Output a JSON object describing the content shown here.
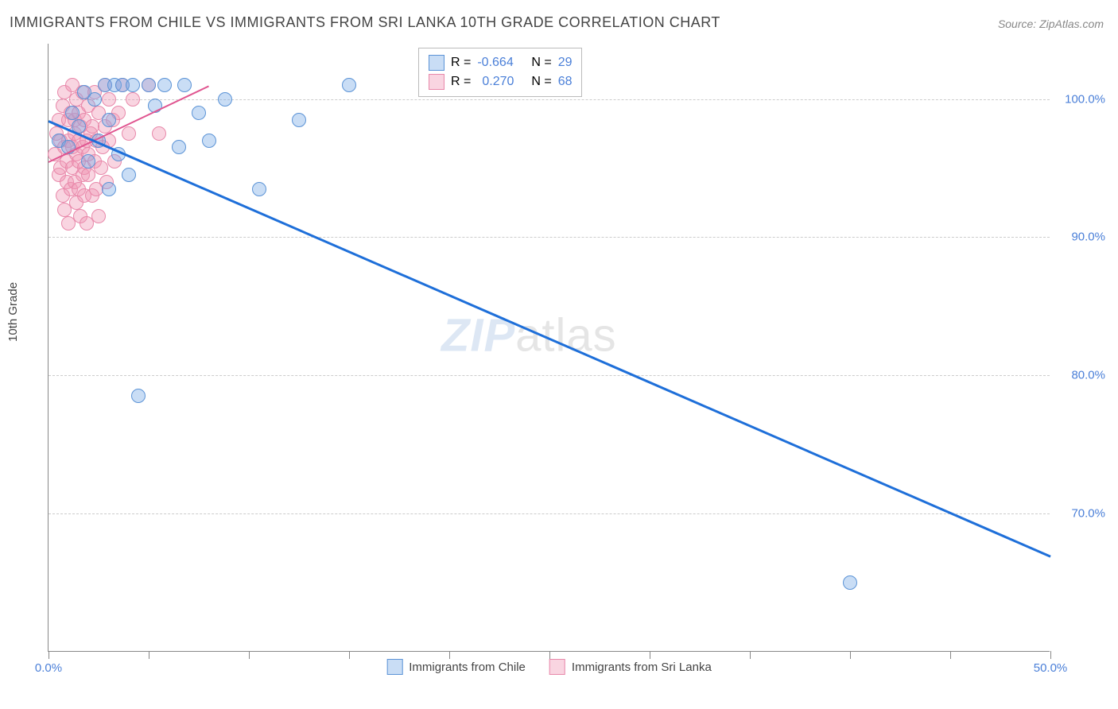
{
  "title": "IMMIGRANTS FROM CHILE VS IMMIGRANTS FROM SRI LANKA 10TH GRADE CORRELATION CHART",
  "source_label": "Source: ZipAtlas.com",
  "ylabel": "10th Grade",
  "watermark_bold": "ZIP",
  "watermark_thin": "atlas",
  "chart": {
    "type": "scatter",
    "xlim": [
      0,
      50
    ],
    "ylim": [
      60,
      104
    ],
    "xtick_positions": [
      0,
      5,
      10,
      15,
      20,
      25,
      30,
      35,
      40,
      45,
      50
    ],
    "xtick_labels": {
      "0": "0.0%",
      "50": "50.0%"
    },
    "ytick_positions": [
      70,
      80,
      90,
      100
    ],
    "ytick_labels": [
      "70.0%",
      "80.0%",
      "90.0%",
      "100.0%"
    ],
    "ytick_color": "#4a7fd8",
    "xtick_color": "#4a7fd8",
    "grid_color": "#cccccc",
    "background_color": "#ffffff",
    "marker_radius": 9,
    "marker_stroke_width": 1
  },
  "series_chile": {
    "label": "Immigrants from Chile",
    "fill_color": "rgba(120,170,230,0.4)",
    "stroke_color": "#5b93d6",
    "trend_color": "#1e6fd9",
    "trend_width": 3,
    "R": "-0.664",
    "N": "29",
    "trend_start": {
      "x": 0,
      "y": 98.5
    },
    "trend_end": {
      "x": 50,
      "y": 67
    },
    "points": [
      {
        "x": 0.5,
        "y": 97
      },
      {
        "x": 1.0,
        "y": 96.5
      },
      {
        "x": 1.2,
        "y": 99
      },
      {
        "x": 1.5,
        "y": 98
      },
      {
        "x": 1.8,
        "y": 100.5
      },
      {
        "x": 2.0,
        "y": 95.5
      },
      {
        "x": 2.3,
        "y": 100
      },
      {
        "x": 2.5,
        "y": 97
      },
      {
        "x": 2.8,
        "y": 101
      },
      {
        "x": 3.0,
        "y": 93.5
      },
      {
        "x": 3.0,
        "y": 98.5
      },
      {
        "x": 3.3,
        "y": 101
      },
      {
        "x": 3.5,
        "y": 96
      },
      {
        "x": 3.7,
        "y": 101
      },
      {
        "x": 4.0,
        "y": 94.5
      },
      {
        "x": 4.2,
        "y": 101
      },
      {
        "x": 4.5,
        "y": 78.5
      },
      {
        "x": 5.0,
        "y": 101
      },
      {
        "x": 5.3,
        "y": 99.5
      },
      {
        "x": 5.8,
        "y": 101
      },
      {
        "x": 6.5,
        "y": 96.5
      },
      {
        "x": 6.8,
        "y": 101
      },
      {
        "x": 7.5,
        "y": 99
      },
      {
        "x": 8.0,
        "y": 97
      },
      {
        "x": 8.8,
        "y": 100
      },
      {
        "x": 10.5,
        "y": 93.5
      },
      {
        "x": 12.5,
        "y": 98.5
      },
      {
        "x": 15.0,
        "y": 101
      },
      {
        "x": 40.0,
        "y": 65
      }
    ]
  },
  "series_srilanka": {
    "label": "Immigrants from Sri Lanka",
    "fill_color": "rgba(240,150,180,0.4)",
    "stroke_color": "#e888aa",
    "trend_color": "#e05590",
    "trend_width": 2,
    "R": "0.270",
    "N": "68",
    "trend_start": {
      "x": 0,
      "y": 95.5
    },
    "trend_end": {
      "x": 8,
      "y": 101
    },
    "points": [
      {
        "x": 0.3,
        "y": 96
      },
      {
        "x": 0.4,
        "y": 97.5
      },
      {
        "x": 0.5,
        "y": 94.5
      },
      {
        "x": 0.5,
        "y": 98.5
      },
      {
        "x": 0.6,
        "y": 95
      },
      {
        "x": 0.6,
        "y": 97
      },
      {
        "x": 0.7,
        "y": 99.5
      },
      {
        "x": 0.7,
        "y": 93
      },
      {
        "x": 0.8,
        "y": 92
      },
      {
        "x": 0.8,
        "y": 96.5
      },
      {
        "x": 0.8,
        "y": 100.5
      },
      {
        "x": 0.9,
        "y": 94
      },
      {
        "x": 0.9,
        "y": 95.5
      },
      {
        "x": 1.0,
        "y": 98.5
      },
      {
        "x": 1.0,
        "y": 91
      },
      {
        "x": 1.0,
        "y": 97
      },
      {
        "x": 1.1,
        "y": 93.5
      },
      {
        "x": 1.1,
        "y": 99
      },
      {
        "x": 1.2,
        "y": 95
      },
      {
        "x": 1.2,
        "y": 96.5
      },
      {
        "x": 1.2,
        "y": 101
      },
      {
        "x": 1.3,
        "y": 94
      },
      {
        "x": 1.3,
        "y": 97.5
      },
      {
        "x": 1.3,
        "y": 98.5
      },
      {
        "x": 1.4,
        "y": 92.5
      },
      {
        "x": 1.4,
        "y": 96
      },
      {
        "x": 1.4,
        "y": 100
      },
      {
        "x": 1.5,
        "y": 93.5
      },
      {
        "x": 1.5,
        "y": 95.5
      },
      {
        "x": 1.5,
        "y": 97
      },
      {
        "x": 1.5,
        "y": 99
      },
      {
        "x": 1.6,
        "y": 91.5
      },
      {
        "x": 1.6,
        "y": 98
      },
      {
        "x": 1.7,
        "y": 94.5
      },
      {
        "x": 1.7,
        "y": 96.5
      },
      {
        "x": 1.7,
        "y": 100.5
      },
      {
        "x": 1.8,
        "y": 93
      },
      {
        "x": 1.8,
        "y": 95
      },
      {
        "x": 1.8,
        "y": 98.5
      },
      {
        "x": 1.9,
        "y": 91
      },
      {
        "x": 1.9,
        "y": 97
      },
      {
        "x": 2.0,
        "y": 94.5
      },
      {
        "x": 2.0,
        "y": 96
      },
      {
        "x": 2.0,
        "y": 99.5
      },
      {
        "x": 2.1,
        "y": 97.5
      },
      {
        "x": 2.2,
        "y": 93
      },
      {
        "x": 2.2,
        "y": 98
      },
      {
        "x": 2.3,
        "y": 95.5
      },
      {
        "x": 2.3,
        "y": 100.5
      },
      {
        "x": 2.4,
        "y": 93.5
      },
      {
        "x": 2.4,
        "y": 97
      },
      {
        "x": 2.5,
        "y": 91.5
      },
      {
        "x": 2.5,
        "y": 99
      },
      {
        "x": 2.6,
        "y": 95
      },
      {
        "x": 2.7,
        "y": 96.5
      },
      {
        "x": 2.8,
        "y": 98
      },
      {
        "x": 2.8,
        "y": 101
      },
      {
        "x": 2.9,
        "y": 94
      },
      {
        "x": 3.0,
        "y": 97
      },
      {
        "x": 3.0,
        "y": 100
      },
      {
        "x": 3.2,
        "y": 98.5
      },
      {
        "x": 3.3,
        "y": 95.5
      },
      {
        "x": 3.5,
        "y": 99
      },
      {
        "x": 3.7,
        "y": 101
      },
      {
        "x": 4.0,
        "y": 97.5
      },
      {
        "x": 4.2,
        "y": 100
      },
      {
        "x": 5.0,
        "y": 101
      },
      {
        "x": 5.5,
        "y": 97.5
      }
    ]
  },
  "legend_stats": {
    "r_label": "R =",
    "n_label": "N =",
    "value_color": "#4a7fd8"
  },
  "bottom_legend": {
    "swatch_size": 18
  }
}
